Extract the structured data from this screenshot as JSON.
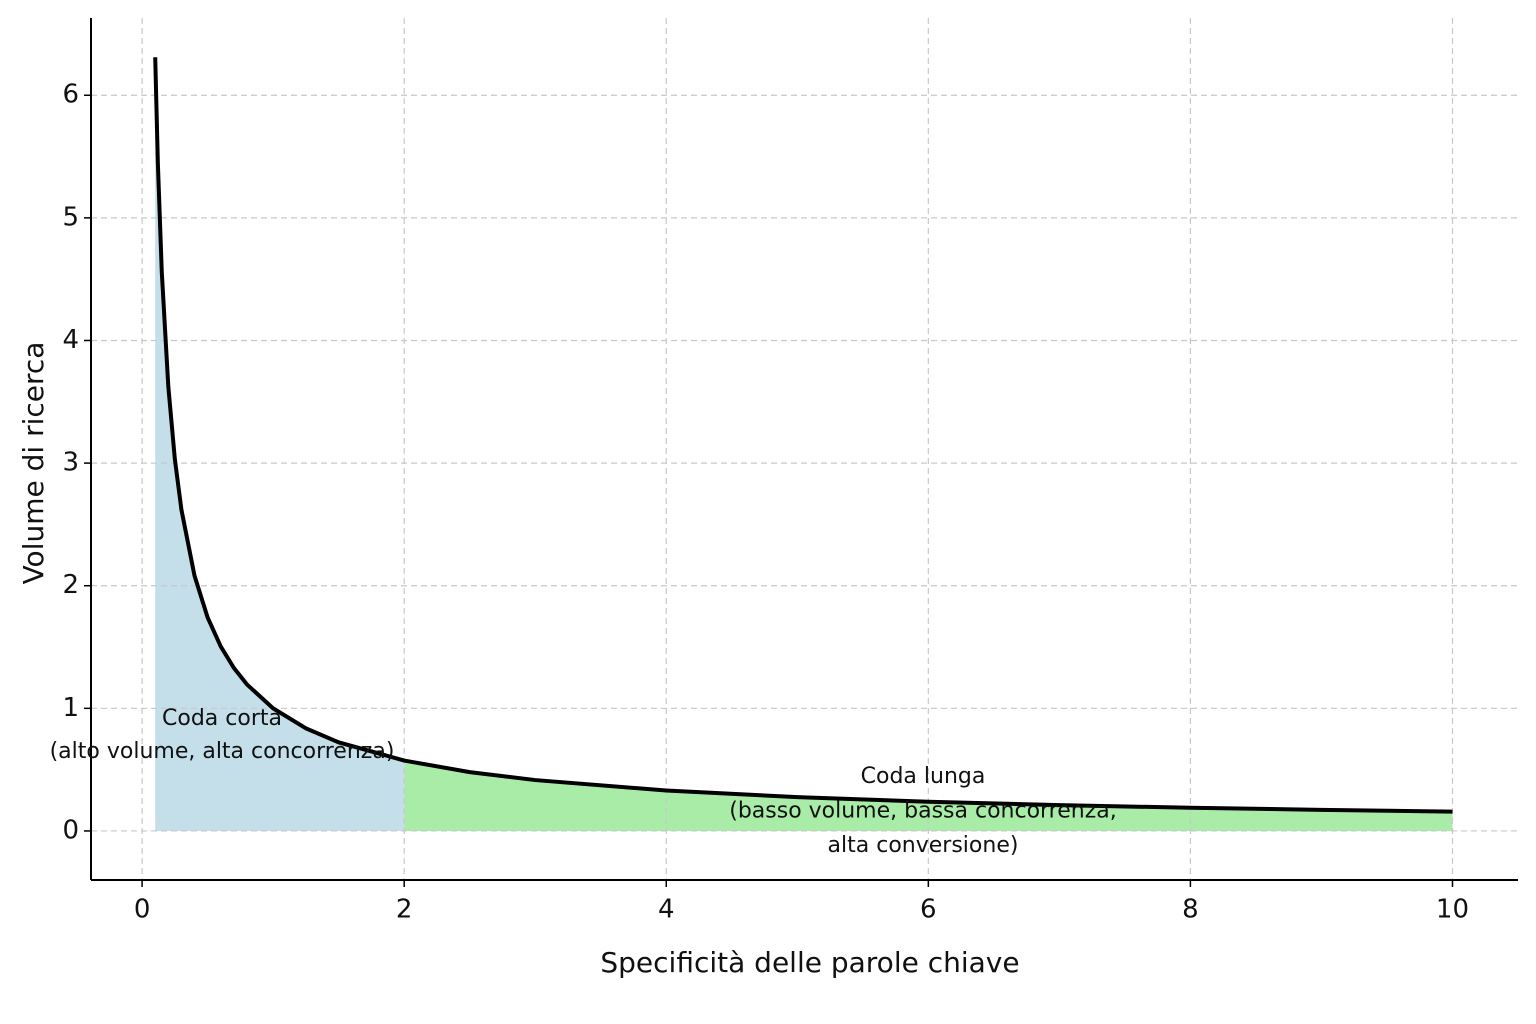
{
  "chart_data": {
    "type": "line",
    "xlabel": "Specificità delle parole chiave",
    "ylabel": "Volume di ricerca",
    "x": [
      0.1,
      0.12,
      0.15,
      0.2,
      0.25,
      0.3,
      0.4,
      0.5,
      0.6,
      0.7,
      0.8,
      1,
      1.25,
      1.5,
      2,
      2.5,
      3,
      4,
      5,
      6,
      7,
      8,
      9,
      10
    ],
    "series": [
      {
        "color": "#000000",
        "values": [
          6.31,
          5.453,
          4.562,
          3.624,
          3.031,
          2.62,
          2.081,
          1.741,
          1.505,
          1.33,
          1.195,
          1,
          0.837,
          0.723,
          0.574,
          0.48,
          0.415,
          0.33,
          0.276,
          0.238,
          0.211,
          0.189,
          0.172,
          0.158
        ]
      }
    ],
    "regions": [
      {
        "xlim": [
          0.1,
          2
        ],
        "color": "#c4dfea"
      },
      {
        "xlim": [
          2,
          10
        ],
        "color": "#a8eca8"
      }
    ],
    "annotations": [
      {
        "lines": [
          "Coda corta",
          "(alto volume, alta concorrenza)"
        ]
      },
      {
        "lines": [
          "Coda lunga",
          "(basso volume, bassa concorrenza,",
          "alta conversione)"
        ]
      }
    ],
    "xlim": [
      -0.39,
      10.5
    ],
    "ylim": [
      -0.4,
      6.63
    ],
    "xticks": [
      0,
      2,
      4,
      6,
      8,
      10
    ],
    "yticks": [
      0,
      1,
      2,
      3,
      4,
      5,
      6
    ],
    "grid": true
  }
}
